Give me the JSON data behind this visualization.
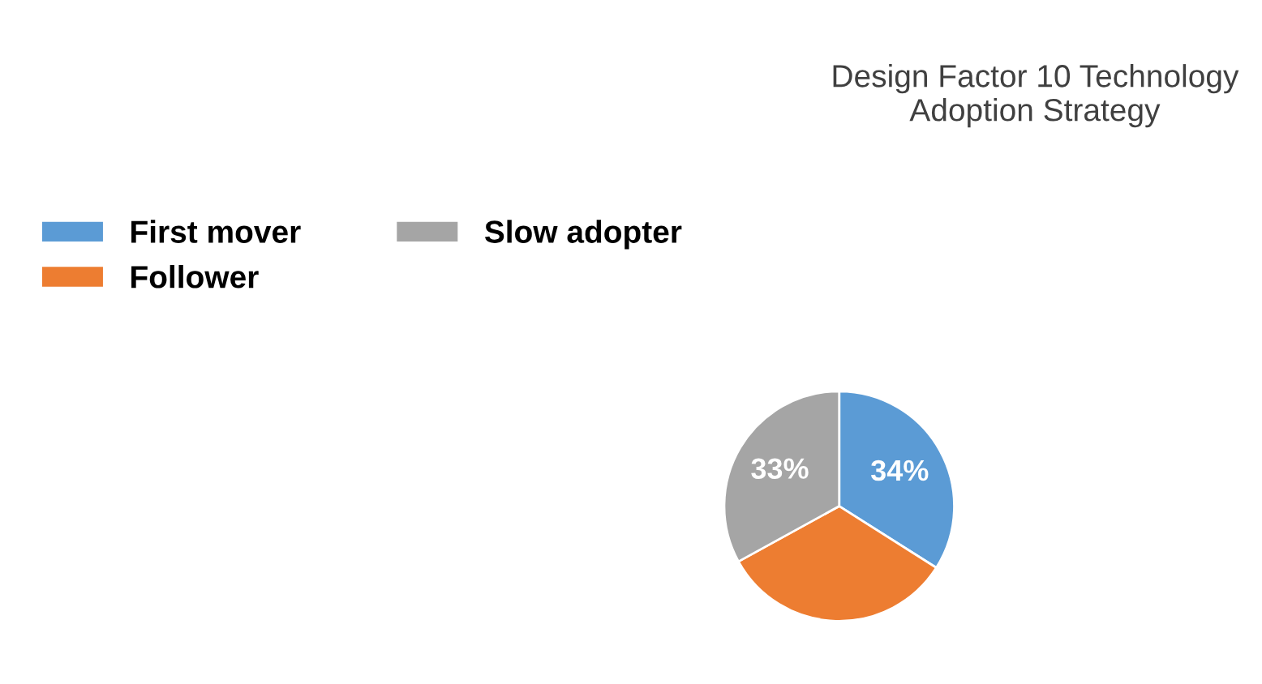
{
  "chart_data": {
    "type": "pie",
    "title": "Design Factor 10 Technology Adoption Strategy",
    "categories": [
      "First mover",
      "Follower",
      "Slow adopter"
    ],
    "values": [
      34,
      33,
      33
    ],
    "colors": [
      "#5b9bd5",
      "#ed7d31",
      "#a5a5a5"
    ],
    "value_labels": [
      "34%",
      null,
      "33%"
    ],
    "legend": "left"
  }
}
